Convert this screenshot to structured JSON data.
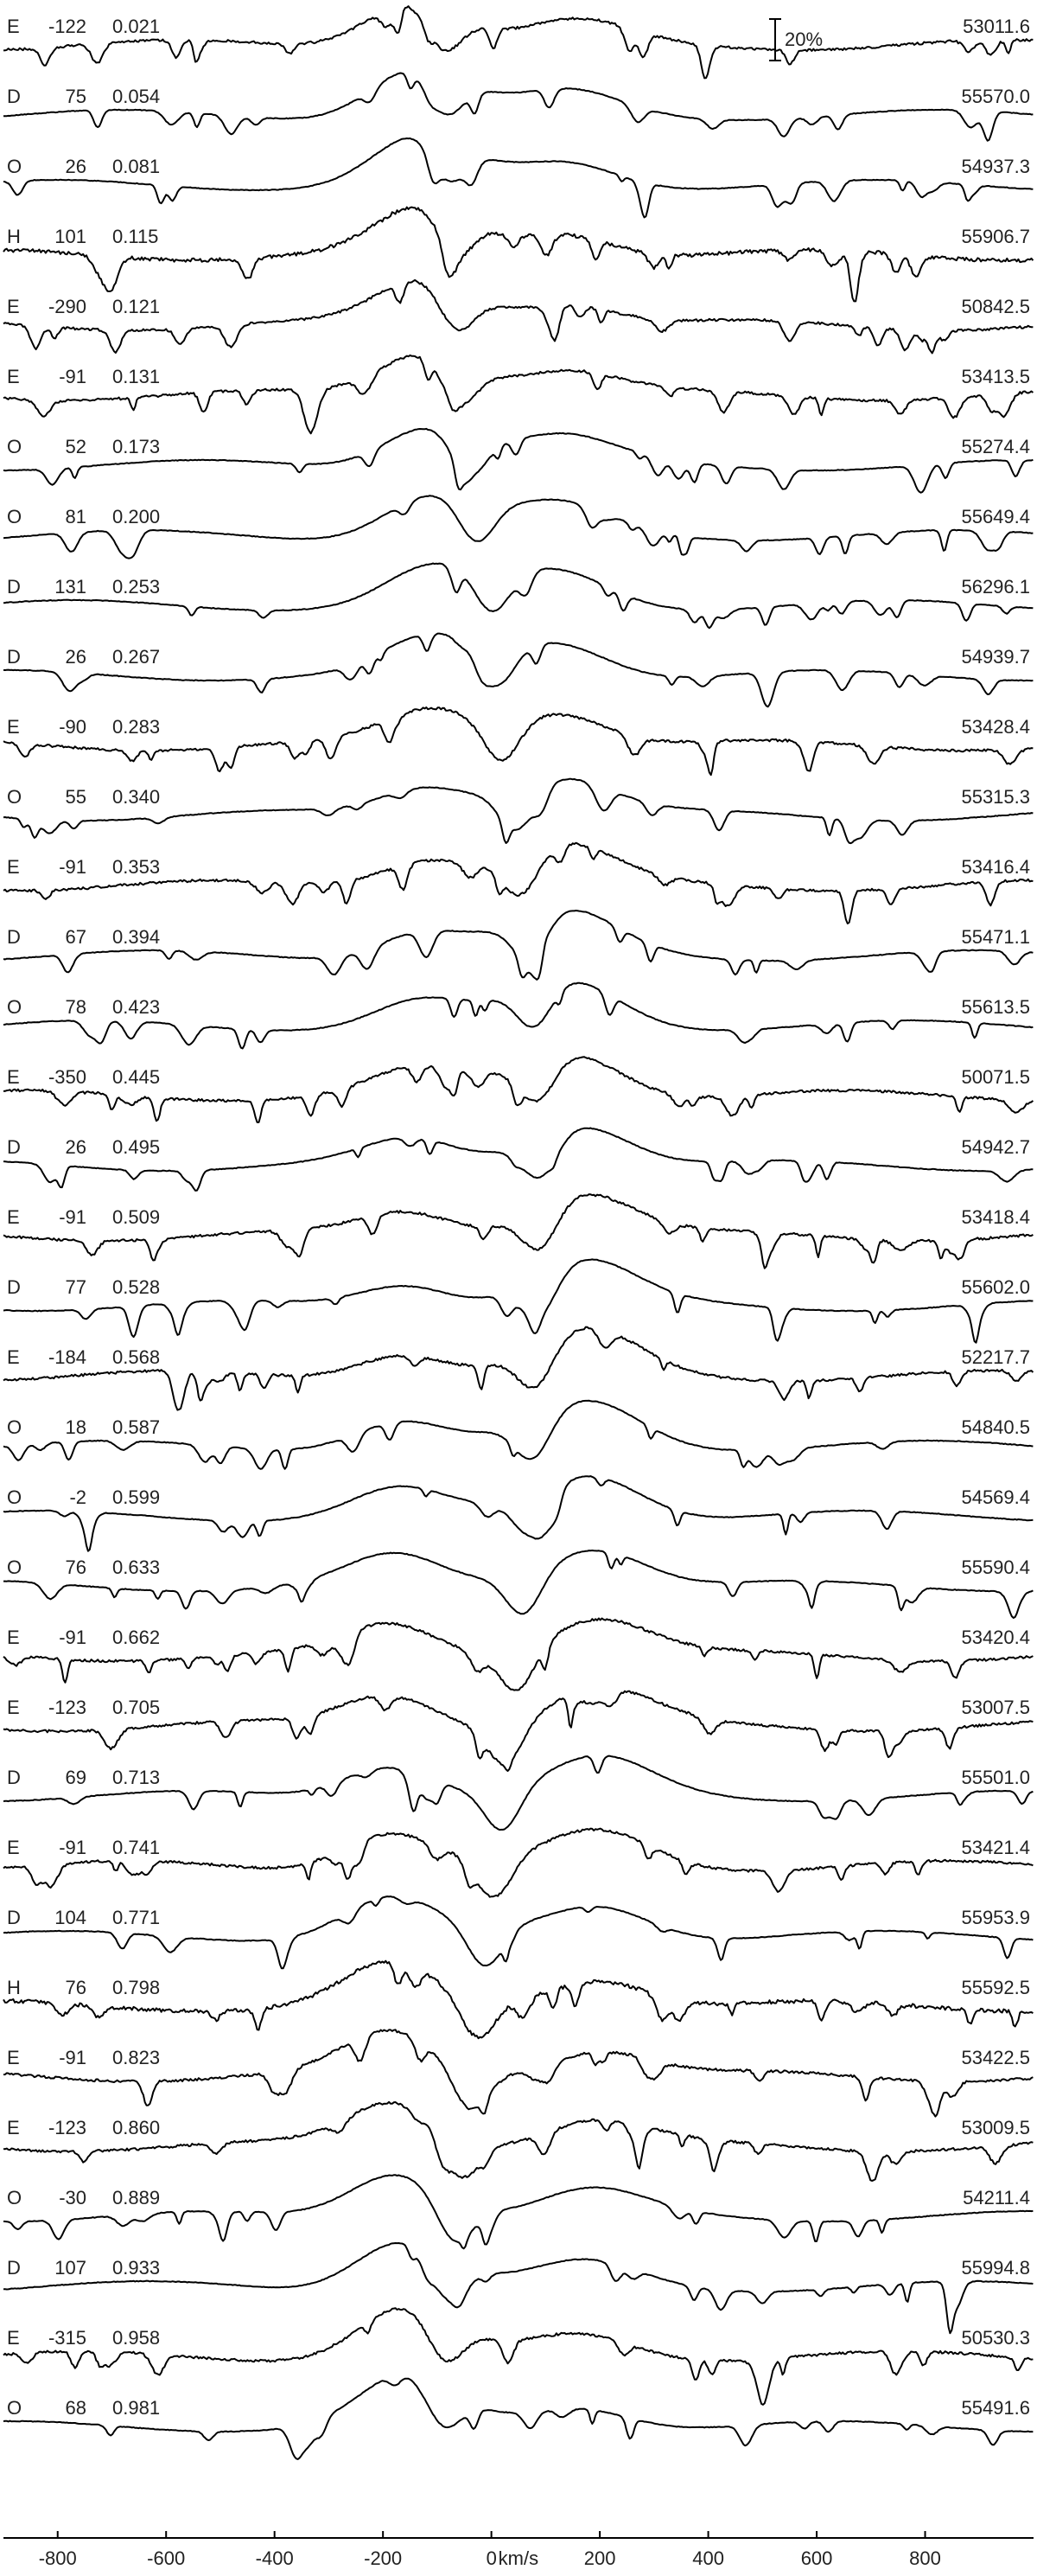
{
  "chart_data": {
    "type": "line",
    "x_unit_label": "km/s",
    "xlim": [
      -900,
      1000
    ],
    "x_ticks": [
      -800,
      -600,
      -400,
      -200,
      0,
      200,
      400,
      600,
      800
    ],
    "scale_bar_label": "20%",
    "grid": false,
    "series": [
      {
        "instrument": "E",
        "rv": "-122",
        "phase": "0.021",
        "mjd": "53011.6"
      },
      {
        "instrument": "D",
        "rv": "75",
        "phase": "0.054",
        "mjd": "55570.0"
      },
      {
        "instrument": "O",
        "rv": "26",
        "phase": "0.081",
        "mjd": "54937.3"
      },
      {
        "instrument": "H",
        "rv": "101",
        "phase": "0.115",
        "mjd": "55906.7"
      },
      {
        "instrument": "E",
        "rv": "-290",
        "phase": "0.121",
        "mjd": "50842.5"
      },
      {
        "instrument": "E",
        "rv": "-91",
        "phase": "0.131",
        "mjd": "53413.5"
      },
      {
        "instrument": "O",
        "rv": "52",
        "phase": "0.173",
        "mjd": "55274.4"
      },
      {
        "instrument": "O",
        "rv": "81",
        "phase": "0.200",
        "mjd": "55649.4"
      },
      {
        "instrument": "D",
        "rv": "131",
        "phase": "0.253",
        "mjd": "56296.1"
      },
      {
        "instrument": "D",
        "rv": "26",
        "phase": "0.267",
        "mjd": "54939.7"
      },
      {
        "instrument": "E",
        "rv": "-90",
        "phase": "0.283",
        "mjd": "53428.4"
      },
      {
        "instrument": "O",
        "rv": "55",
        "phase": "0.340",
        "mjd": "55315.3"
      },
      {
        "instrument": "E",
        "rv": "-91",
        "phase": "0.353",
        "mjd": "53416.4"
      },
      {
        "instrument": "D",
        "rv": "67",
        "phase": "0.394",
        "mjd": "55471.1"
      },
      {
        "instrument": "O",
        "rv": "78",
        "phase": "0.423",
        "mjd": "55613.5"
      },
      {
        "instrument": "E",
        "rv": "-350",
        "phase": "0.445",
        "mjd": "50071.5"
      },
      {
        "instrument": "D",
        "rv": "26",
        "phase": "0.495",
        "mjd": "54942.7"
      },
      {
        "instrument": "E",
        "rv": "-91",
        "phase": "0.509",
        "mjd": "53418.4"
      },
      {
        "instrument": "D",
        "rv": "77",
        "phase": "0.528",
        "mjd": "55602.0"
      },
      {
        "instrument": "E",
        "rv": "-184",
        "phase": "0.568",
        "mjd": "52217.7"
      },
      {
        "instrument": "O",
        "rv": "18",
        "phase": "0.587",
        "mjd": "54840.5"
      },
      {
        "instrument": "O",
        "rv": "-2",
        "phase": "0.599",
        "mjd": "54569.4"
      },
      {
        "instrument": "O",
        "rv": "76",
        "phase": "0.633",
        "mjd": "55590.4"
      },
      {
        "instrument": "E",
        "rv": "-91",
        "phase": "0.662",
        "mjd": "53420.4"
      },
      {
        "instrument": "E",
        "rv": "-123",
        "phase": "0.705",
        "mjd": "53007.5"
      },
      {
        "instrument": "D",
        "rv": "69",
        "phase": "0.713",
        "mjd": "55501.0"
      },
      {
        "instrument": "E",
        "rv": "-91",
        "phase": "0.741",
        "mjd": "53421.4"
      },
      {
        "instrument": "D",
        "rv": "104",
        "phase": "0.771",
        "mjd": "55953.9"
      },
      {
        "instrument": "H",
        "rv": "76",
        "phase": "0.798",
        "mjd": "55592.5"
      },
      {
        "instrument": "E",
        "rv": "-91",
        "phase": "0.823",
        "mjd": "53422.5"
      },
      {
        "instrument": "E",
        "rv": "-123",
        "phase": "0.860",
        "mjd": "53009.5"
      },
      {
        "instrument": "O",
        "rv": "-30",
        "phase": "0.889",
        "mjd": "54211.4"
      },
      {
        "instrument": "D",
        "rv": "107",
        "phase": "0.933",
        "mjd": "55994.8"
      },
      {
        "instrument": "E",
        "rv": "-315",
        "phase": "0.958",
        "mjd": "50530.3"
      },
      {
        "instrument": "O",
        "rv": "68",
        "phase": "0.981",
        "mjd": "55491.6"
      }
    ]
  }
}
